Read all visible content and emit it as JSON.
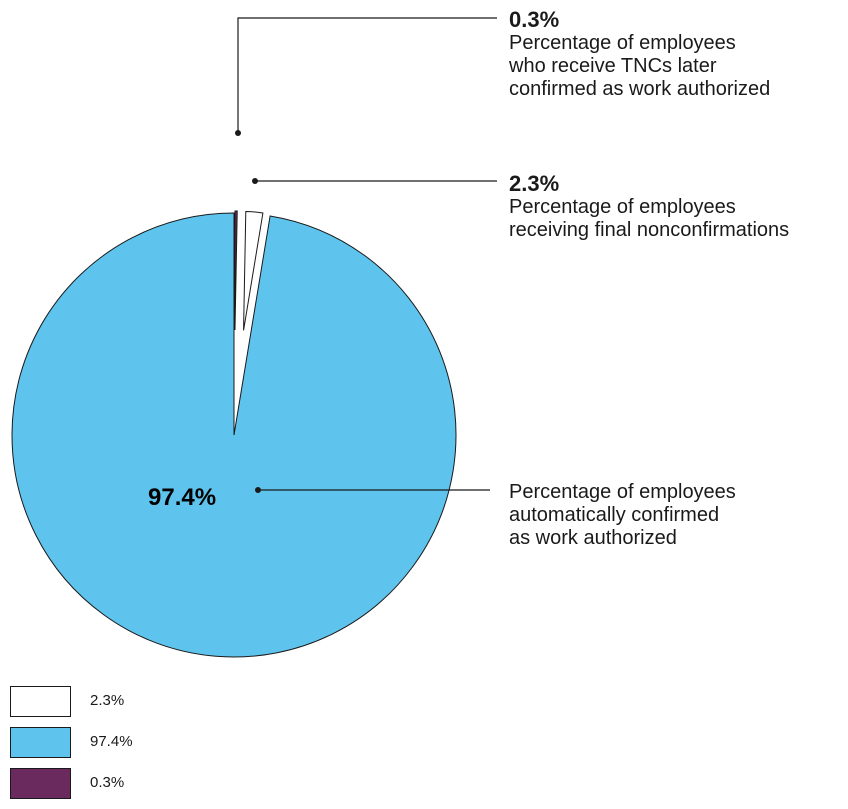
{
  "chart_data": {
    "type": "pie",
    "slices": [
      {
        "key": "tnc",
        "value": 0.3,
        "label": "0.3%",
        "color": "#6b2a5e"
      },
      {
        "key": "final",
        "value": 2.3,
        "label": "2.3%",
        "color": "#ffffff"
      },
      {
        "key": "confirmed",
        "value": 97.4,
        "label": "97.4%",
        "color": "#5ec4ee"
      }
    ],
    "annotations": {
      "tnc": {
        "pct": "0.3%",
        "lines": [
          "Percentage of employees",
          "who receive TNCs later",
          "confirmed as work authorized"
        ]
      },
      "final": {
        "pct": "2.3%",
        "lines": [
          "Percentage of employees",
          "receiving final nonconfirmations"
        ]
      },
      "confirmed": {
        "pct": "97.4%",
        "lines": [
          "Percentage of employees",
          "automatically confirmed",
          "as work authorized"
        ]
      }
    },
    "legend": [
      {
        "label": "2.3%",
        "color": "#ffffff"
      },
      {
        "label": "97.4%",
        "color": "#5ec4ee"
      },
      {
        "label": "0.3%",
        "color": "#6b2a5e"
      }
    ]
  }
}
